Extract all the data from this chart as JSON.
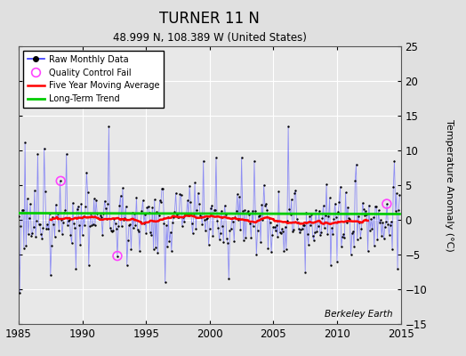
{
  "title": "TURNER 11 N",
  "subtitle": "48.999 N, 108.389 W (United States)",
  "ylabel": "Temperature Anomaly (°C)",
  "watermark": "Berkeley Earth",
  "xlim": [
    1985,
    2015
  ],
  "ylim": [
    -15,
    25
  ],
  "yticks": [
    -15,
    -10,
    -5,
    0,
    5,
    10,
    15,
    20,
    25
  ],
  "xticks": [
    1985,
    1990,
    1995,
    2000,
    2005,
    2010,
    2015
  ],
  "raw_color": "#3333FF",
  "raw_line_alpha": 0.5,
  "moving_avg_color": "#FF0000",
  "trend_color": "#00CC00",
  "qc_fail_color": "#FF44FF",
  "bg_color": "#E0E0E0",
  "plot_bg_color": "#E8E8E8",
  "grid_color": "#FFFFFF",
  "title_fontsize": 12,
  "subtitle_fontsize": 9,
  "trend_slope": -0.004,
  "trend_intercept": 0.9,
  "qc_fail_points": [
    [
      1988.3,
      5.6
    ],
    [
      1992.75,
      -5.2
    ],
    [
      2013.9,
      2.3
    ]
  ]
}
